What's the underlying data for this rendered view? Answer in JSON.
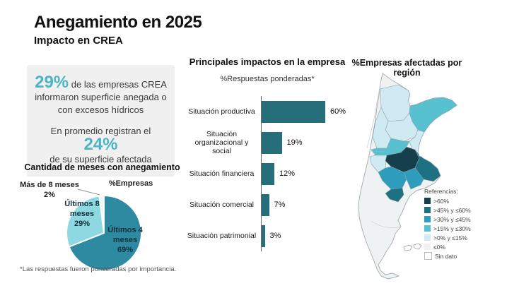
{
  "page": {
    "title": "Anegamiento en 2025",
    "subtitle": "Impacto en CREA",
    "footnote": "*Las respuestas fueron ponderadas por importancia."
  },
  "colors": {
    "accent": "#4cb5c3"
  },
  "summary_box": {
    "stat1": {
      "value": "29%",
      "text": "de las empresas CREA informaron superficie anegada o con excesos hídricos"
    },
    "stat2": {
      "prefix": "En promedio registran el",
      "value": "24%",
      "suffix": "de su superficie afectada"
    }
  },
  "chart_data": [
    {
      "type": "pie",
      "title": "Cantidad de meses con anegamiento",
      "unit_label": "%Empresas",
      "direction": "clockwise",
      "start_angle_deg": 0,
      "slices": [
        {
          "label": "Últimos 4 meses",
          "value": 69,
          "color": "#2e8aa0"
        },
        {
          "label": "Últimos 8 meses",
          "value": 29,
          "color": "#8ed8e1"
        },
        {
          "label": "Más de 8 meses",
          "value": 2,
          "color": "#eaf6f8"
        }
      ]
    },
    {
      "type": "bar",
      "orientation": "horizontal",
      "title": "Principales impactos en la empresa",
      "subtitle": "%Respuestas ponderadas*",
      "categories": [
        "Situación productiva",
        "Situación organizacional y social",
        "Situación financiera",
        "Situación comercial",
        "Situación patrimonial"
      ],
      "values": [
        60,
        19,
        12,
        7,
        3
      ],
      "value_suffix": "%",
      "bar_color": "#266f7a",
      "xlim": [
        0,
        65
      ],
      "grid": false
    },
    {
      "type": "choropleth",
      "title": "%Empresas afectadas por región",
      "region": "Argentina",
      "legend": {
        "title": "Referencias:",
        "items": [
          {
            "label": ">60%",
            "color": "#143f4b"
          },
          {
            "label": ">45% y ≤60%",
            "color": "#1d7183"
          },
          {
            "label": ">30% y ≤45%",
            "color": "#2e9dbd"
          },
          {
            "label": ">15% y ≤30%",
            "color": "#57c1d0"
          },
          {
            "label": ">0% y ≤15%",
            "color": "#cfeaf3"
          },
          {
            "label": "≤0%",
            "color": "#eef2f3"
          },
          {
            "label": "Sin dato",
            "color": "#ffffff"
          }
        ]
      }
    }
  ]
}
